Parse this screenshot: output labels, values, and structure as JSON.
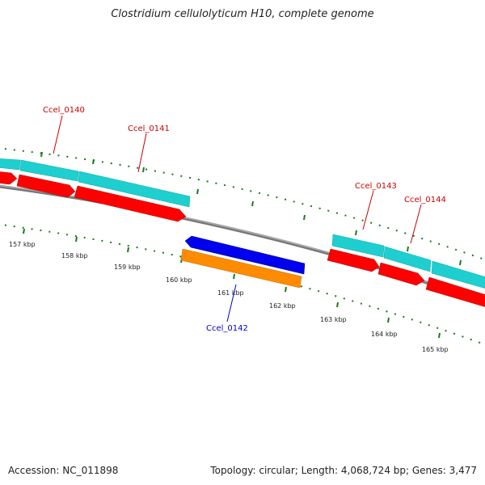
{
  "title": "Clostridium cellulolyticum H10, complete genome",
  "footer": {
    "accession": "Accession: NC_011898",
    "summary": "Topology: circular; Length: 4,068,724 bp; Genes: 3,477"
  },
  "gene_labels": [
    {
      "id": "g140",
      "text": "Ccel_0140",
      "strand": "forward"
    },
    {
      "id": "g141",
      "text": "Ccel_0141",
      "strand": "forward"
    },
    {
      "id": "g142",
      "text": "Ccel_0142",
      "strand": "reverse"
    },
    {
      "id": "g143",
      "text": "Ccel_0143",
      "strand": "forward"
    },
    {
      "id": "g144",
      "text": "Ccel_0144",
      "strand": "forward"
    }
  ],
  "scale_labels": [
    "157 kbp",
    "158 kbp",
    "159 kbp",
    "160 kbp",
    "161 kbp",
    "162 kbp",
    "163 kbp",
    "164 kbp",
    "165 kbp"
  ],
  "colors": {
    "forward_label": "#cc0000",
    "reverse_label": "#0000cc",
    "cds_forward": "#1fcfcf",
    "gene_forward": "#ff0000",
    "gene_reverse": "#0000ee",
    "cds_reverse": "#ff8c00",
    "backbone": "#808080",
    "ticks": "#1a7a1a"
  }
}
